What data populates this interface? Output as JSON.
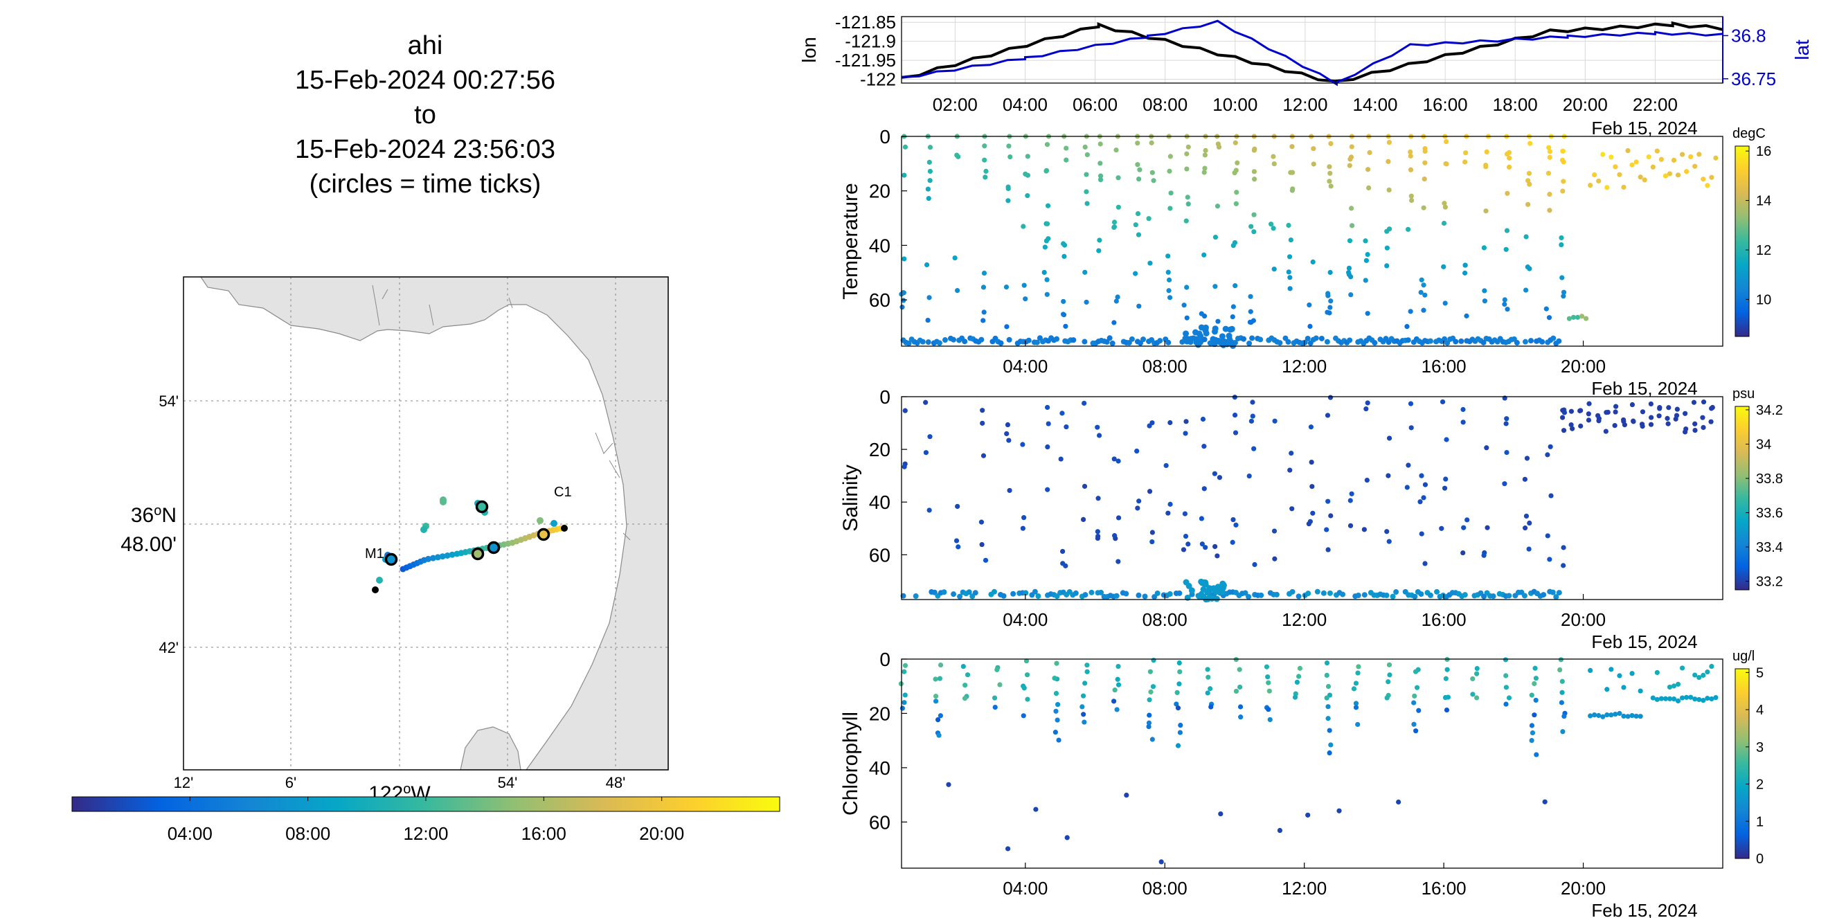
{
  "title": {
    "lines": [
      "ahi",
      "15-Feb-2024 00:27:56",
      "to",
      "15-Feb-2024 23:56:03",
      "(circles = time ticks)"
    ]
  },
  "map": {
    "y_ticks": [
      "54'",
      "42'"
    ],
    "lat_label": [
      "36°N",
      "48.00'"
    ],
    "x_ticks": [
      "12'",
      "6'",
      "54'",
      "48'"
    ],
    "lon_label": "122°W",
    "stations": [
      "M1",
      "C1"
    ],
    "time_colorbar_ticks": [
      "04:00",
      "08:00",
      "12:00",
      "16:00",
      "20:00"
    ]
  },
  "colors": {
    "lon_line": "#000000",
    "lat_line": "#0000cc",
    "land": "#e3e3e3",
    "parula": [
      "#352a87",
      "#0363e1",
      "#1485d4",
      "#06a7c6",
      "#38b99e",
      "#92bf73",
      "#d9ba56",
      "#fcce2e",
      "#f9fb0e"
    ]
  },
  "chart_data": [
    {
      "type": "line",
      "title": "",
      "xlabel": "",
      "ylabel": "lon",
      "y2label": "lat",
      "date_label": "Feb 15, 2024",
      "x_ticks": [
        "02:00",
        "04:00",
        "06:00",
        "08:00",
        "10:00",
        "12:00",
        "14:00",
        "16:00",
        "18:00",
        "20:00",
        "22:00"
      ],
      "y_ticks": [
        "-121.85",
        "-121.9",
        "-121.95",
        "-122"
      ],
      "y2_ticks": [
        "36.8",
        "36.75"
      ],
      "xlim_hours": [
        0.47,
        23.93
      ],
      "ylim": [
        -122.01,
        -121.835
      ],
      "y2lim": [
        36.745,
        36.822
      ],
      "series": [
        {
          "name": "lon",
          "axis": "left",
          "x": [
            0.47,
            6.1,
            8.0,
            10.0,
            12.85,
            16.0,
            19.0,
            22.5,
            23.93
          ],
          "y": [
            -121.995,
            -121.855,
            -121.895,
            -121.94,
            -122.005,
            -121.935,
            -121.87,
            -121.852,
            -121.862
          ]
        },
        {
          "name": "lat",
          "axis": "right",
          "x": [
            0.47,
            4.0,
            7.5,
            9.5,
            12.9,
            15.0,
            19.5,
            22.0,
            23.93
          ],
          "y": [
            36.752,
            36.775,
            36.8,
            36.817,
            36.746,
            36.79,
            36.8,
            36.804,
            36.802
          ]
        }
      ]
    },
    {
      "type": "scatter",
      "title": "",
      "ylabel": "Temperature",
      "units": "degC",
      "date_label": "Feb 15, 2024",
      "x_ticks": [
        "04:00",
        "08:00",
        "12:00",
        "16:00",
        "20:00"
      ],
      "y_ticks": [
        "0",
        "20",
        "40",
        "60"
      ],
      "colorbar_ticks": [
        "16",
        "14",
        "12",
        "10"
      ],
      "ylim": [
        0,
        77
      ],
      "clim": [
        8.5,
        16.2
      ],
      "profiles_hours": [
        0.5,
        1.2,
        2.0,
        2.8,
        3.5,
        4.0,
        4.6,
        5.1,
        5.7,
        6.1,
        6.6,
        7.2,
        7.6,
        8.1,
        8.6,
        9.1,
        9.5,
        10.0,
        10.5,
        11.1,
        11.6,
        12.2,
        12.7,
        13.3,
        13.8,
        14.4,
        15.0,
        15.4,
        16.0,
        16.6,
        17.2,
        17.8,
        18.4,
        19.0,
        19.4
      ],
      "bottom_depth": 75,
      "surface_color_range": [
        12.5,
        15.8
      ],
      "extra_segments": [
        {
          "x_start": 19.6,
          "x_end": 20.1,
          "depth": 66,
          "value": 12.3
        },
        {
          "x_start": 20.2,
          "x_end": 23.9,
          "depth": 5,
          "value": 14.5
        }
      ]
    },
    {
      "type": "scatter",
      "title": "",
      "ylabel": "Salinity",
      "units": "psu",
      "date_label": "Feb 15, 2024",
      "x_ticks": [
        "04:00",
        "08:00",
        "12:00",
        "16:00",
        "20:00"
      ],
      "y_ticks": [
        "0",
        "20",
        "40",
        "60"
      ],
      "colorbar_ticks": [
        "34.2",
        "34",
        "33.8",
        "33.6",
        "33.4",
        "33.2"
      ],
      "ylim": [
        0,
        77
      ],
      "clim": [
        33.15,
        34.22
      ],
      "profiles_hours": [
        0.5,
        1.2,
        2.0,
        2.8,
        3.5,
        4.0,
        4.6,
        5.1,
        5.7,
        6.1,
        6.6,
        7.2,
        7.6,
        8.1,
        8.6,
        9.1,
        9.5,
        10.0,
        10.5,
        11.1,
        11.6,
        12.2,
        12.7,
        13.3,
        13.8,
        14.4,
        15.0,
        15.4,
        16.0,
        16.6,
        17.2,
        17.8,
        18.4,
        19.0,
        19.4
      ],
      "bottom_depth": 75,
      "bottom_value": 33.45,
      "surface_value": 33.2
    },
    {
      "type": "scatter",
      "title": "",
      "ylabel": "Chlorophyll",
      "units": "ug/l",
      "date_label": "Feb 15, 2024",
      "x_ticks": [
        "04:00",
        "08:00",
        "12:00",
        "16:00",
        "20:00"
      ],
      "y_ticks": [
        "0",
        "20",
        "40",
        "60"
      ],
      "colorbar_ticks": [
        "5",
        "4",
        "3",
        "2",
        "1",
        "0"
      ],
      "ylim": [
        0,
        77
      ],
      "clim": [
        0,
        5.1
      ],
      "profiles_hours": [
        0.5,
        1.5,
        2.3,
        3.2,
        4.0,
        4.9,
        5.7,
        6.6,
        7.6,
        8.4,
        9.3,
        10.1,
        11.0,
        11.8,
        12.7,
        13.5,
        14.4,
        15.2,
        16.1,
        16.9,
        17.8,
        18.6,
        19.4
      ],
      "surface_value": 2.0,
      "deep_value": 0.4,
      "extra_segments": [
        {
          "x_start": 20.2,
          "x_end": 21.7,
          "depth": 20,
          "value": 1.5
        },
        {
          "x_start": 22.0,
          "x_end": 23.9,
          "depth": 14,
          "value": 1.8
        }
      ]
    }
  ]
}
